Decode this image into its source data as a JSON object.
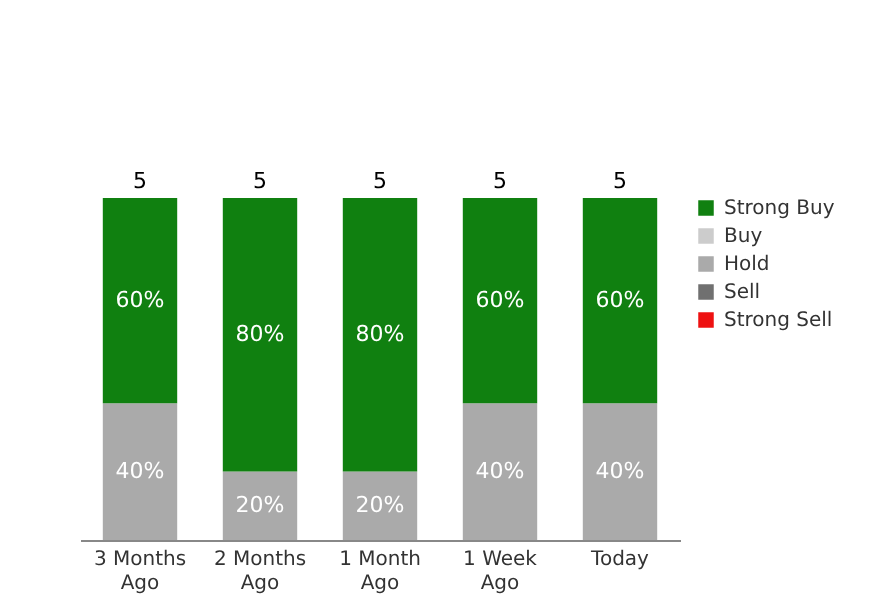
{
  "chart_data": {
    "type": "bar",
    "stacked": true,
    "categories": [
      "3 Months Ago",
      "2 Months Ago",
      "1 Month Ago",
      "1 Week Ago",
      "Today"
    ],
    "legend": "right",
    "grid": false,
    "tick_labels": "x",
    "series": [
      {
        "name": "Strong Sell",
        "color": "#ee1111",
        "values": [
          null,
          null,
          null,
          null,
          null
        ]
      },
      {
        "name": "Sell",
        "color": "#707070",
        "values": [
          null,
          null,
          null,
          null,
          null
        ]
      },
      {
        "name": "Hold",
        "color": "#aaaaaa",
        "values": [
          40,
          20,
          20,
          40,
          40
        ],
        "value_labels": [
          "40%",
          "20%",
          "20%",
          "40%",
          "40%"
        ]
      },
      {
        "name": "Buy",
        "color": "#cccccc",
        "values": [
          null,
          null,
          null,
          null,
          null
        ]
      },
      {
        "name": "Strong Buy",
        "color": "#108010",
        "values": [
          60,
          80,
          80,
          60,
          60
        ],
        "value_labels": [
          "60%",
          "80%",
          "80%",
          "60%",
          "60%"
        ]
      }
    ],
    "annotations": [
      {
        "text": "5",
        "x": "3 Months Ago",
        "y": 100
      },
      {
        "text": "5",
        "x": "2 Months Ago",
        "y": 100
      },
      {
        "text": "5",
        "x": "1 Month Ago",
        "y": 100
      },
      {
        "text": "5",
        "x": "1 Week Ago",
        "y": 100
      },
      {
        "text": "5",
        "x": "Today",
        "y": 100
      }
    ]
  }
}
